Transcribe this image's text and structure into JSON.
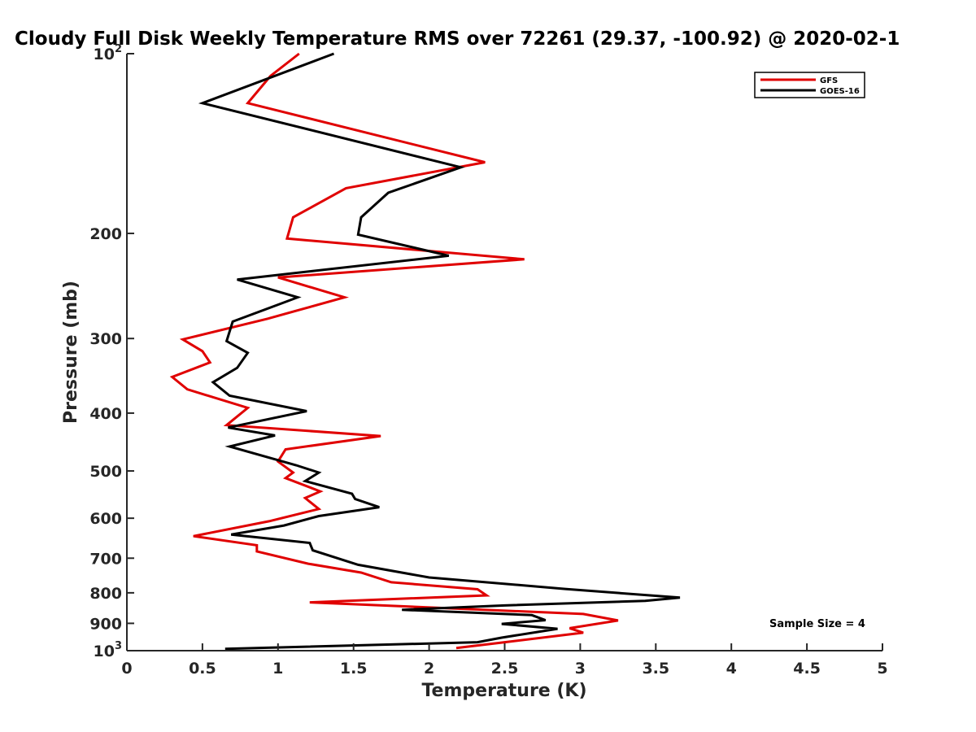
{
  "chart_data": {
    "type": "line",
    "title": "Cloudy Full Disk Weekly Temperature RMS over 72261 (29.37, -100.92) @ 2020-02-1",
    "xlabel": "Temperature (K)",
    "ylabel": "Pressure (mb)",
    "xlim": [
      0,
      5
    ],
    "ylim": [
      1000,
      100
    ],
    "y_scale": "log",
    "y_direction": "reversed",
    "grid": false,
    "legend_position": "top-right",
    "x_ticks": [
      "0",
      "0.5",
      "1",
      "1.5",
      "2",
      "2.5",
      "3",
      "3.5",
      "4",
      "4.5",
      "5"
    ],
    "x_tick_values": [
      0,
      0.5,
      1,
      1.5,
      2,
      2.5,
      3,
      3.5,
      4,
      4.5,
      5
    ],
    "y_ticks": [
      {
        "value": 100,
        "base": "10",
        "exp": "2"
      },
      {
        "value": 200,
        "label": "200"
      },
      {
        "value": 300,
        "label": "300"
      },
      {
        "value": 400,
        "label": "400"
      },
      {
        "value": 500,
        "label": "500"
      },
      {
        "value": 600,
        "label": "600"
      },
      {
        "value": 700,
        "label": "700"
      },
      {
        "value": 800,
        "label": "800"
      },
      {
        "value": 900,
        "label": "900"
      },
      {
        "value": 1000,
        "base": "10",
        "exp": "3"
      }
    ],
    "annotation": "Sample Size = 4",
    "series": [
      {
        "name": "GFS",
        "color": "#e00000",
        "points": [
          [
            1.14,
            100
          ],
          [
            0.95,
            109
          ],
          [
            0.8,
            121
          ],
          [
            2.37,
            152
          ],
          [
            1.45,
            168
          ],
          [
            1.1,
            188
          ],
          [
            1.06,
            204
          ],
          [
            2.63,
            221
          ],
          [
            1.0,
            237
          ],
          [
            1.44,
            256
          ],
          [
            0.93,
            278
          ],
          [
            0.37,
            301
          ],
          [
            0.5,
            315
          ],
          [
            0.55,
            329
          ],
          [
            0.3,
            348
          ],
          [
            0.4,
            365
          ],
          [
            0.8,
            392
          ],
          [
            0.66,
            419
          ],
          [
            1.68,
            437
          ],
          [
            1.05,
            460
          ],
          [
            1.0,
            482
          ],
          [
            1.1,
            503
          ],
          [
            1.05,
            514
          ],
          [
            1.28,
            541
          ],
          [
            1.18,
            555
          ],
          [
            1.27,
            579
          ],
          [
            0.94,
            607
          ],
          [
            0.44,
            643
          ],
          [
            0.86,
            666
          ],
          [
            0.86,
            682
          ],
          [
            1.2,
            715
          ],
          [
            1.55,
            740
          ],
          [
            1.75,
            768
          ],
          [
            2.32,
            789
          ],
          [
            2.38,
            808
          ],
          [
            1.21,
            830
          ],
          [
            3.02,
            868
          ],
          [
            3.25,
            890
          ],
          [
            2.93,
            917
          ],
          [
            3.02,
            933
          ],
          [
            2.5,
            968
          ],
          [
            2.18,
            990
          ]
        ]
      },
      {
        "name": "GOES-16",
        "color": "#000000",
        "points": [
          [
            1.37,
            100
          ],
          [
            0.5,
            121
          ],
          [
            2.21,
            155
          ],
          [
            1.73,
            171
          ],
          [
            1.55,
            188
          ],
          [
            1.53,
            201
          ],
          [
            2.13,
            218
          ],
          [
            0.73,
            239
          ],
          [
            1.13,
            256
          ],
          [
            0.7,
            281
          ],
          [
            0.66,
            303
          ],
          [
            0.8,
            317
          ],
          [
            0.73,
            336
          ],
          [
            0.57,
            355
          ],
          [
            0.68,
            374
          ],
          [
            1.19,
            397
          ],
          [
            0.67,
            423
          ],
          [
            0.98,
            436
          ],
          [
            0.68,
            455
          ],
          [
            1.12,
            489
          ],
          [
            1.27,
            503
          ],
          [
            1.18,
            520
          ],
          [
            1.49,
            546
          ],
          [
            1.51,
            557
          ],
          [
            1.67,
            575
          ],
          [
            1.27,
            595
          ],
          [
            1.04,
            617
          ],
          [
            0.69,
            639
          ],
          [
            1.21,
            660
          ],
          [
            1.23,
            679
          ],
          [
            1.53,
            718
          ],
          [
            2.0,
            754
          ],
          [
            2.9,
            788
          ],
          [
            3.66,
            815
          ],
          [
            3.43,
            825
          ],
          [
            2.5,
            840
          ],
          [
            1.82,
            854
          ],
          [
            2.68,
            872
          ],
          [
            2.77,
            889
          ],
          [
            2.48,
            902
          ],
          [
            2.85,
            919
          ],
          [
            2.48,
            951
          ],
          [
            2.32,
            968
          ],
          [
            0.65,
            993
          ]
        ]
      }
    ]
  }
}
